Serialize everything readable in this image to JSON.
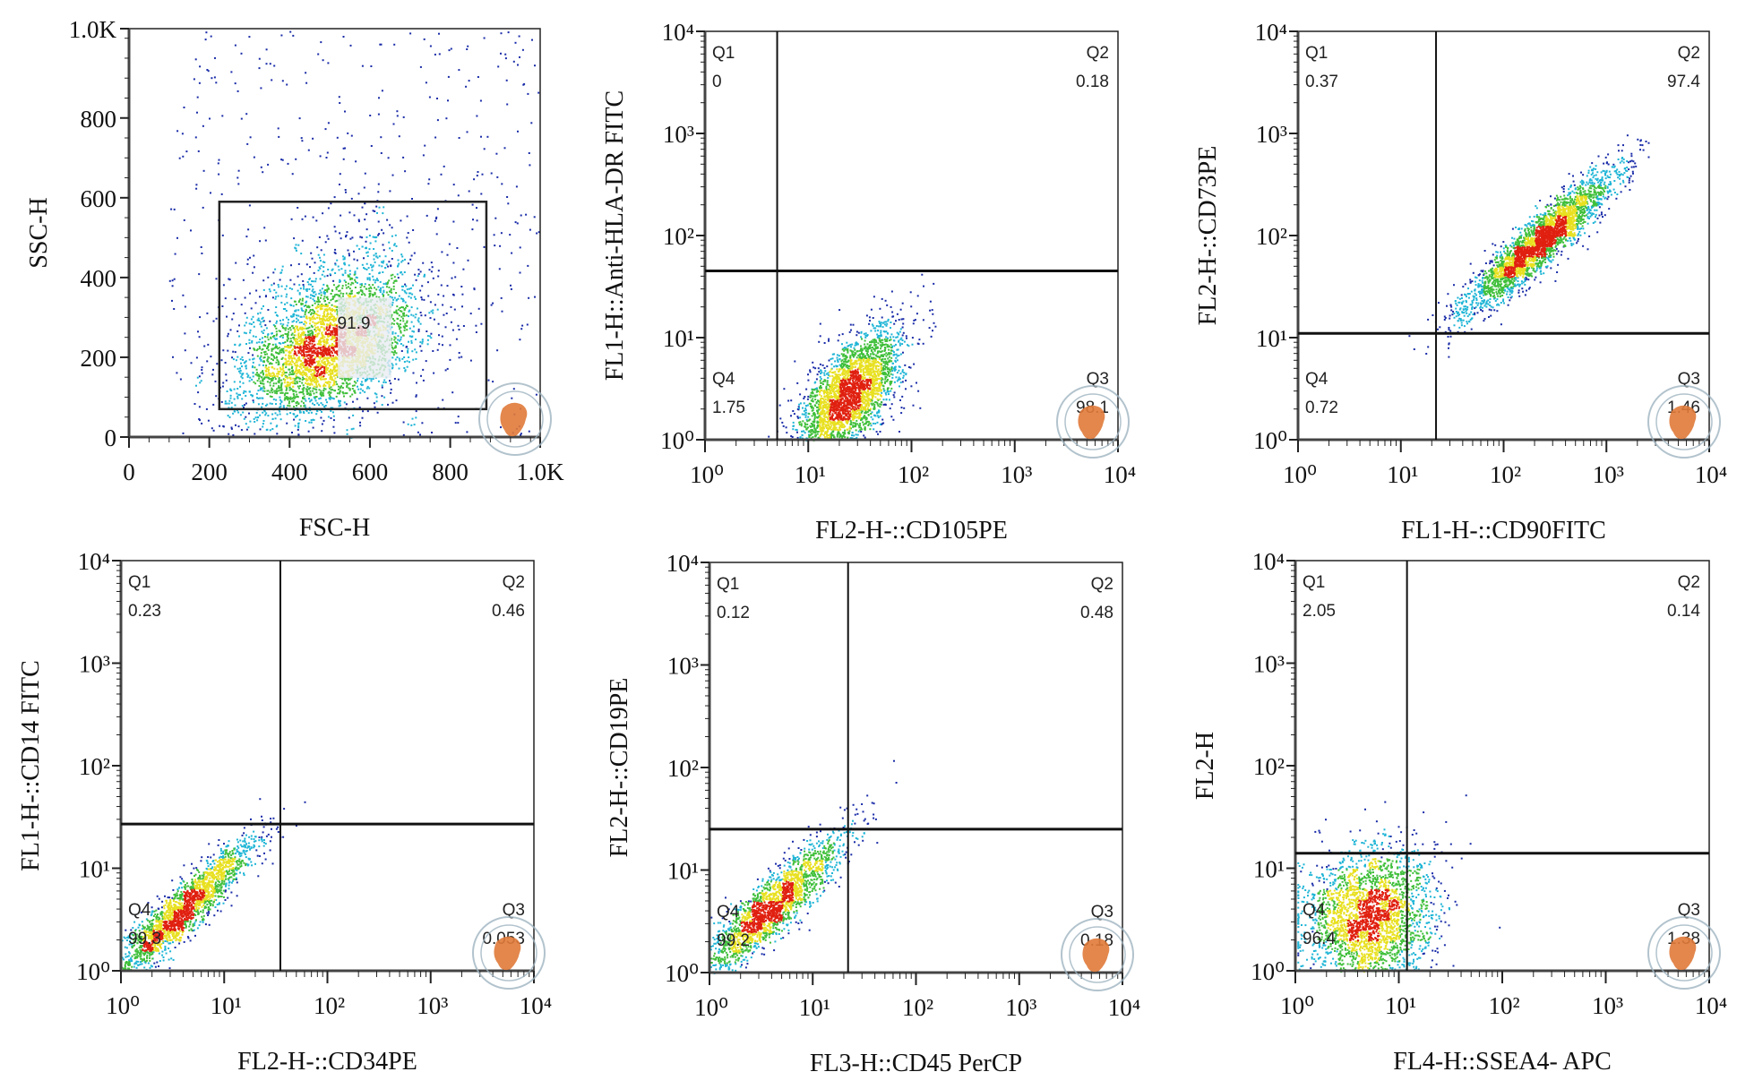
{
  "chart_data": [
    {
      "type": "scatter",
      "scale": "linear",
      "xlabel": "FSC-H",
      "ylabel": "SSC-H",
      "xlim": [
        0,
        1024
      ],
      "ylim": [
        0,
        1024
      ],
      "xticks": [
        0,
        200,
        400,
        600,
        800,
        1024
      ],
      "xtick_labels": [
        "0",
        "200",
        "400",
        "600",
        "800",
        "1.0K"
      ],
      "yticks": [
        0,
        200,
        400,
        600,
        800,
        1024
      ],
      "ytick_labels": [
        "0",
        "200",
        "400",
        "600",
        "800",
        "1.0K"
      ],
      "gate": {
        "x": [
          225,
          890
        ],
        "y": [
          70,
          590
        ],
        "label": "91.9"
      },
      "population": {
        "cx": 500,
        "cy": 210,
        "sx": 110,
        "sy": 80,
        "corr": 0.5,
        "n": 3800,
        "background_n": 500
      }
    },
    {
      "type": "scatter",
      "scale": "log",
      "xlabel": "FL2-H-::CD105PE",
      "ylabel": "FL1-H::Anti-HLA-DR FITC",
      "tick_labels": [
        "10⁰",
        "10¹",
        "10²",
        "10³",
        "10⁴"
      ],
      "quadrant_split": {
        "x": 5,
        "y": 45
      },
      "quadrants": [
        {
          "name": "Q1",
          "value": "0"
        },
        {
          "name": "Q2",
          "value": "0.18"
        },
        {
          "name": "Q3",
          "value": "98.1"
        },
        {
          "name": "Q4",
          "value": "1.75"
        }
      ],
      "population": {
        "cx": 1.4,
        "cy": 0.45,
        "sx": 0.25,
        "sy": 0.32,
        "corr": 0.65,
        "n": 3000
      }
    },
    {
      "type": "scatter",
      "scale": "log",
      "xlabel": "FL1-H-::CD90FITC",
      "ylabel": "FL2-H-::CD73PE",
      "tick_labels": [
        "10⁰",
        "10¹",
        "10²",
        "10³",
        "10⁴"
      ],
      "quadrant_split": {
        "x": 22,
        "y": 11
      },
      "quadrants": [
        {
          "name": "Q1",
          "value": "0.37"
        },
        {
          "name": "Q2",
          "value": "97.4"
        },
        {
          "name": "Q3",
          "value": "1.46"
        },
        {
          "name": "Q4",
          "value": "0.72"
        }
      ],
      "population": {
        "cx": 2.35,
        "cy": 1.95,
        "sx": 0.35,
        "sy": 0.33,
        "corr": 0.92,
        "n": 3200
      }
    },
    {
      "type": "scatter",
      "scale": "log",
      "xlabel": "FL2-H-::CD34PE",
      "ylabel": "FL1-H-::CD14 FITC",
      "tick_labels": [
        "10⁰",
        "10¹",
        "10²",
        "10³",
        "10⁴"
      ],
      "quadrant_split": {
        "x": 35,
        "y": 27
      },
      "quadrants": [
        {
          "name": "Q1",
          "value": "0.23"
        },
        {
          "name": "Q2",
          "value": "0.46"
        },
        {
          "name": "Q3",
          "value": "0.053"
        },
        {
          "name": "Q4",
          "value": "99.3"
        }
      ],
      "population": {
        "cx": 0.6,
        "cy": 0.6,
        "sx": 0.35,
        "sy": 0.35,
        "corr": 0.93,
        "n": 2200
      }
    },
    {
      "type": "scatter",
      "scale": "log",
      "xlabel": "FL3-H::CD45 PerCP",
      "ylabel": "FL2-H-::CD19PE",
      "tick_labels": [
        "10⁰",
        "10¹",
        "10²",
        "10³",
        "10⁴"
      ],
      "quadrant_split": {
        "x": 22,
        "y": 25
      },
      "quadrants": [
        {
          "name": "Q1",
          "value": "0.12"
        },
        {
          "name": "Q2",
          "value": "0.48"
        },
        {
          "name": "Q3",
          "value": "0.18"
        },
        {
          "name": "Q4",
          "value": "99.2"
        }
      ],
      "population": {
        "cx": 0.6,
        "cy": 0.65,
        "sx": 0.35,
        "sy": 0.35,
        "corr": 0.9,
        "n": 2200
      }
    },
    {
      "type": "scatter",
      "scale": "log",
      "xlabel": "FL4-H::SSEA4- APC",
      "ylabel": "FL2-H",
      "tick_labels": [
        "10⁰",
        "10¹",
        "10²",
        "10³",
        "10⁴"
      ],
      "quadrant_split": {
        "x": 12,
        "y": 14
      },
      "quadrants": [
        {
          "name": "Q1",
          "value": "2.05"
        },
        {
          "name": "Q2",
          "value": "0.14"
        },
        {
          "name": "Q3",
          "value": "1.38"
        },
        {
          "name": "Q4",
          "value": "96.4"
        }
      ],
      "population": {
        "cx": 0.7,
        "cy": 0.5,
        "sx": 0.3,
        "sy": 0.35,
        "corr": 0.1,
        "n": 2800
      }
    }
  ],
  "colors": {
    "low": "#1a2ca8",
    "mid1": "#1fb5d6",
    "mid2": "#3fbf3a",
    "mid3": "#e8e020",
    "high": "#e02010",
    "stamp": "#e07a3a"
  }
}
